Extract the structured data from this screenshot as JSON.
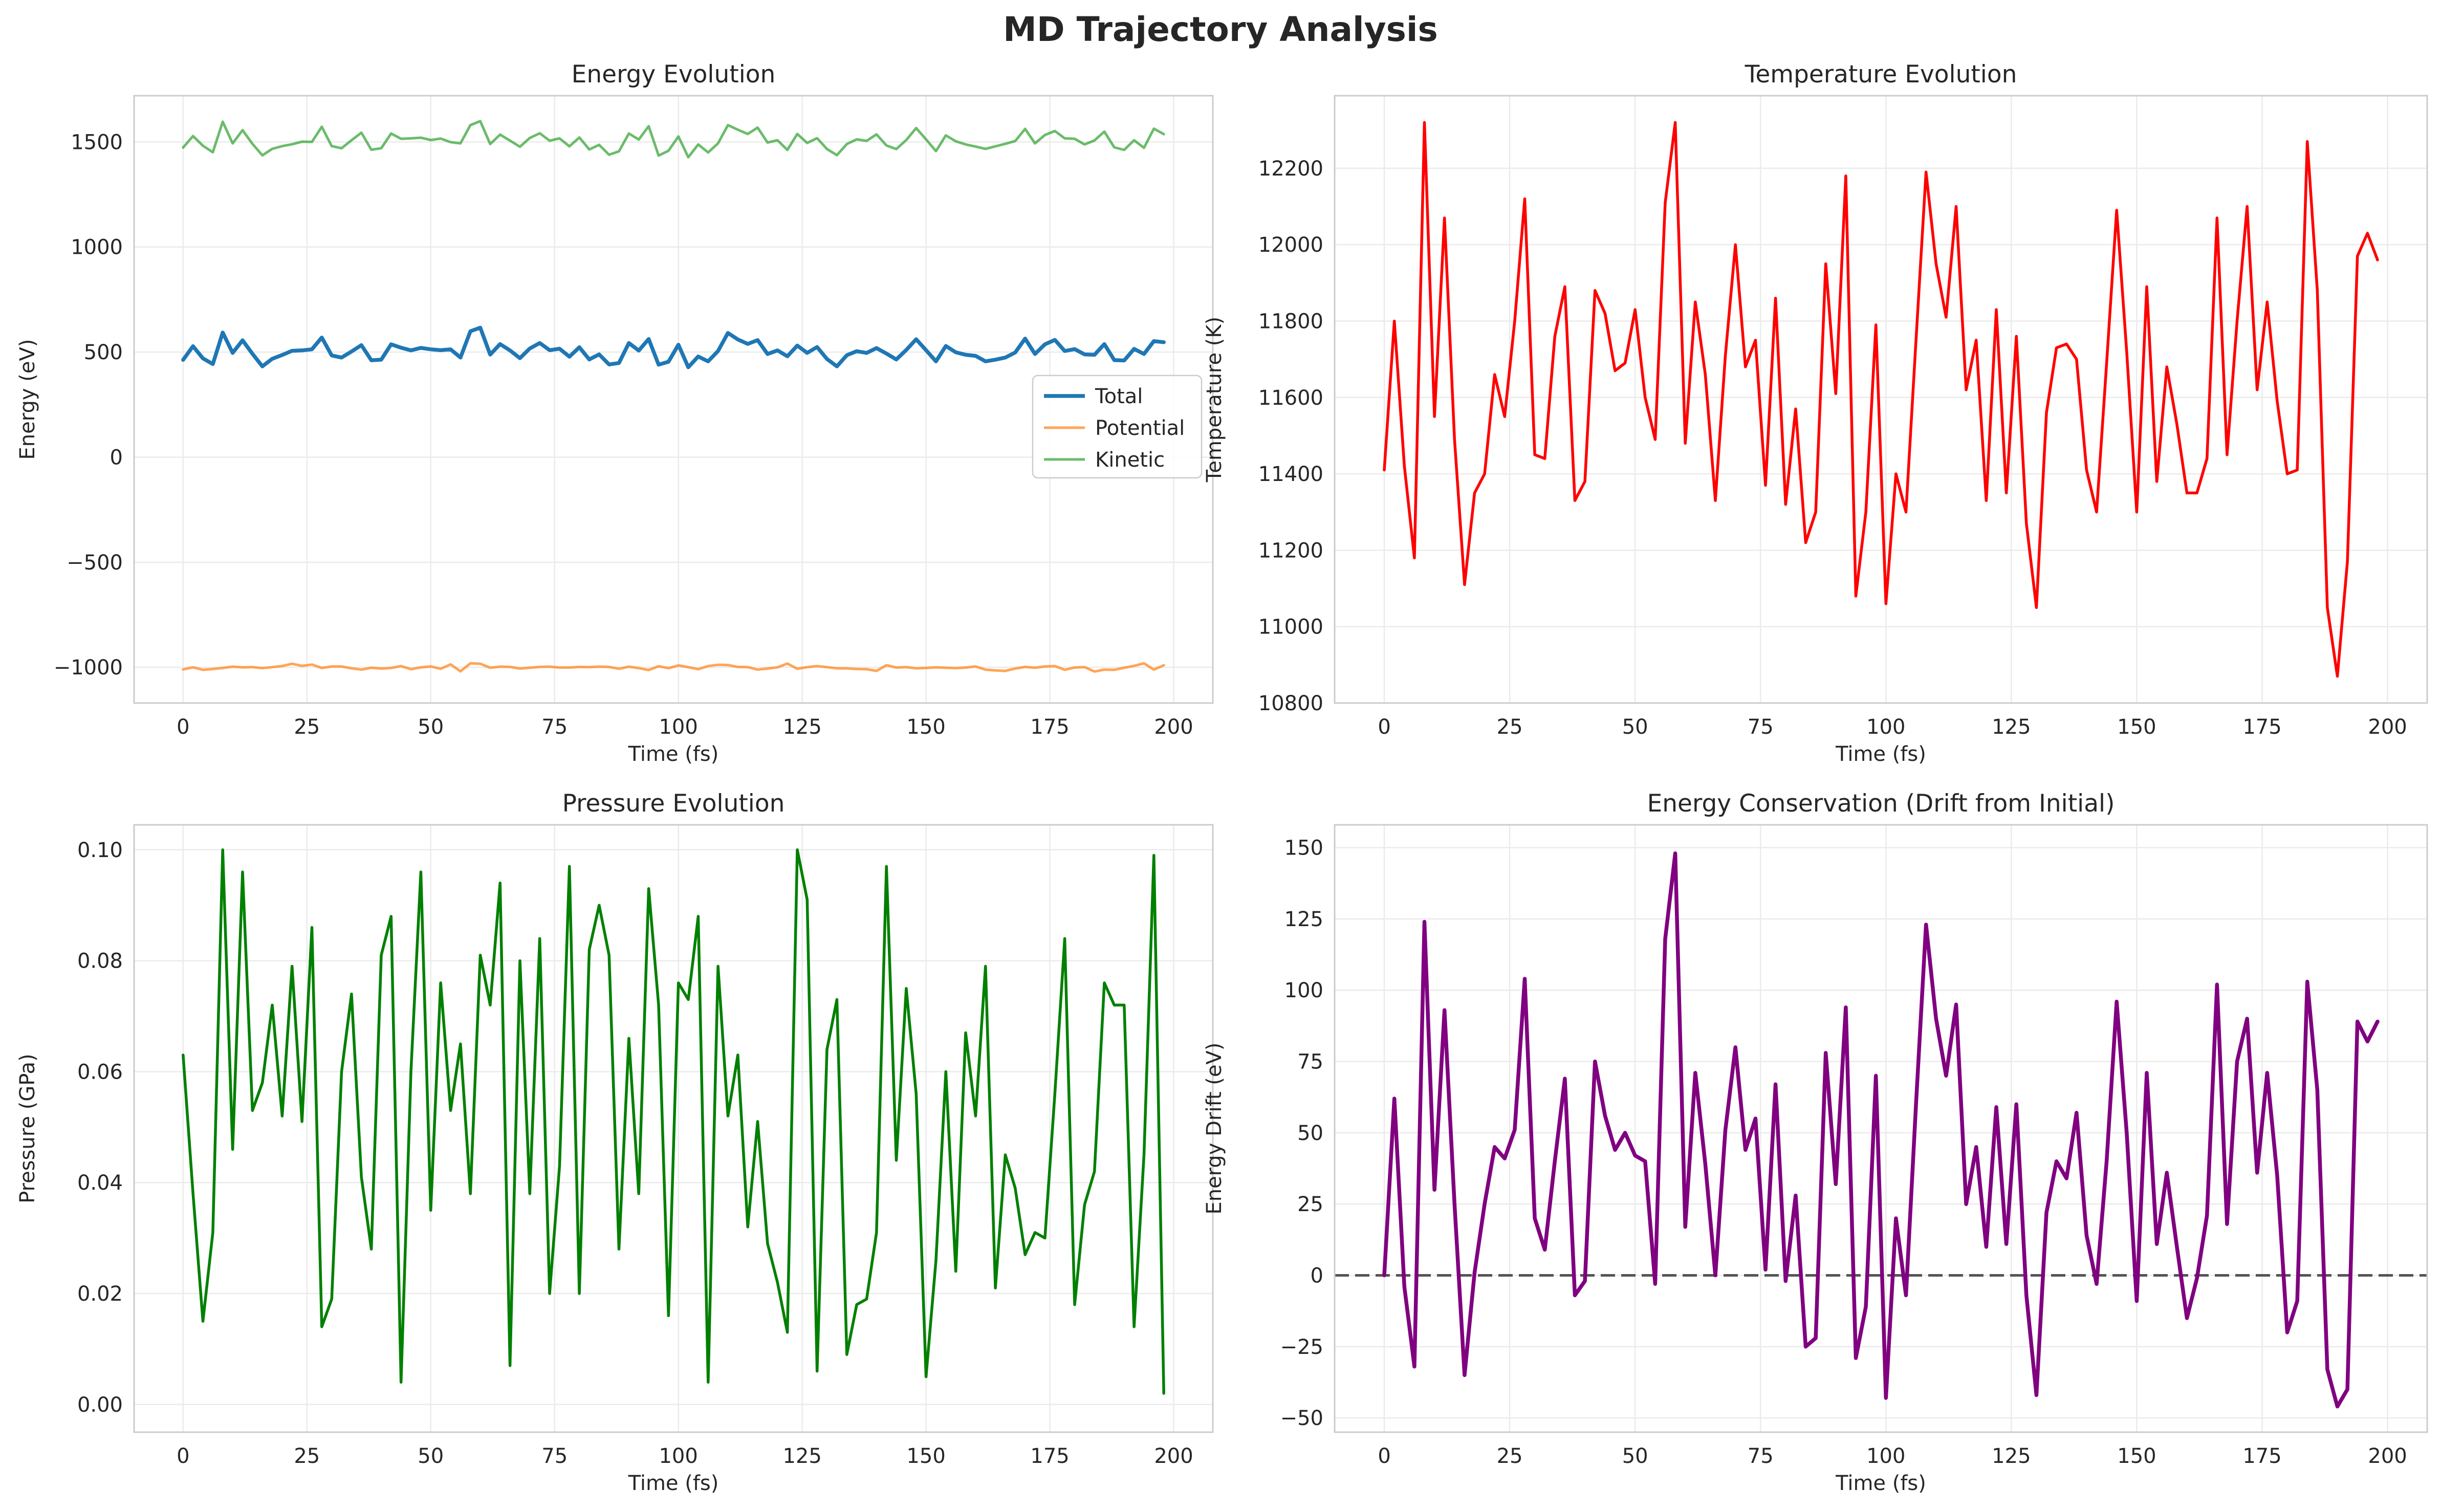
{
  "figure": {
    "suptitle": "MD Trajectory Analysis"
  },
  "chart_data": [
    {
      "id": "energy",
      "type": "line",
      "title": "Energy Evolution",
      "xlabel": "Time (fs)",
      "ylabel": "Energy (eV)",
      "xlim": [
        -9.9,
        207.9
      ],
      "ylim": [
        -1170,
        1720
      ],
      "xticks": [
        0,
        25,
        50,
        75,
        100,
        125,
        150,
        175,
        200
      ],
      "yticks": [
        -1000,
        -500,
        0,
        500,
        1000,
        1500
      ],
      "ytick_labels": [
        "−1000",
        "−500",
        "0",
        "500",
        "1000",
        "1500"
      ],
      "grid": true,
      "legend": "center-right",
      "x": [
        0,
        2,
        4,
        6,
        8,
        10,
        12,
        14,
        16,
        18,
        20,
        22,
        24,
        26,
        28,
        30,
        32,
        34,
        36,
        38,
        40,
        42,
        44,
        46,
        48,
        50,
        52,
        54,
        56,
        58,
        60,
        62,
        64,
        66,
        68,
        70,
        72,
        74,
        76,
        78,
        80,
        82,
        84,
        86,
        88,
        90,
        92,
        94,
        96,
        98,
        100,
        102,
        104,
        106,
        108,
        110,
        112,
        114,
        116,
        118,
        120,
        122,
        124,
        126,
        128,
        130,
        132,
        134,
        136,
        138,
        140,
        142,
        144,
        146,
        148,
        150,
        152,
        154,
        156,
        158,
        160,
        162,
        164,
        166,
        168,
        170,
        172,
        174,
        176,
        178,
        180,
        182,
        184,
        186,
        188,
        190,
        192,
        194,
        196,
        198
      ],
      "series": [
        {
          "name": "Total",
          "color": "#1f77b4",
          "width": 7.5,
          "values": [
            463,
            528,
            470,
            443,
            593,
            496,
            556,
            492,
            432,
            468,
            486,
            506,
            508,
            513,
            569,
            484,
            474,
            503,
            533,
            461,
            464,
            537,
            521,
            508,
            520,
            513,
            509,
            513,
            474,
            599,
            616,
            488,
            538,
            508,
            471,
            517,
            543,
            509,
            516,
            478,
            523,
            465,
            489,
            441,
            448,
            543,
            507,
            562,
            440,
            454,
            535,
            428,
            479,
            456,
            505,
            591,
            560,
            539,
            557,
            491,
            508,
            480,
            531,
            496,
            524,
            467,
            432,
            485,
            504,
            496,
            519,
            493,
            465,
            510,
            561,
            509,
            456,
            529,
            499,
            487,
            482,
            456,
            464,
            474,
            498,
            564,
            491,
            537,
            558,
            505,
            514,
            489,
            487,
            538,
            462,
            460,
            515,
            491,
            552,
            547
          ]
        },
        {
          "name": "Potential",
          "color": "#ff7f0e",
          "width": 5.0,
          "alpha": 0.7,
          "values": [
            -1010,
            -1000,
            -1012,
            -1008,
            -1003,
            -997,
            -1000,
            -999,
            -1004,
            -999,
            -994,
            -983,
            -993,
            -987,
            -1003,
            -996,
            -996,
            -1005,
            -1011,
            -1002,
            -1006,
            -1003,
            -994,
            -1009,
            -1000,
            -996,
            -1007,
            -986,
            -1019,
            -981,
            -983,
            -1002,
            -997,
            -998,
            -1006,
            -1002,
            -998,
            -997,
            -1001,
            -1001,
            -998,
            -999,
            -997,
            -998,
            -1007,
            -997,
            -1004,
            -1013,
            -995,
            -1004,
            -991,
            -999,
            -1009,
            -994,
            -988,
            -989,
            -998,
            -999,
            -1011,
            -1006,
            -1000,
            -982,
            -1007,
            -999,
            -994,
            -999,
            -1005,
            -1005,
            -1008,
            -1009,
            -1017,
            -990,
            -1001,
            -999,
            -1005,
            -1003,
            -1000,
            -1002,
            -1004,
            -1001,
            -996,
            -1011,
            -1015,
            -1017,
            -1006,
            -998,
            -1002,
            -996,
            -994,
            -1012,
            -1001,
            -999,
            -1020,
            -1011,
            -1012,
            -1002,
            -993,
            -981,
            -1011,
            -990
          ]
        },
        {
          "name": "Kinetic",
          "color": "#2ca02c",
          "width": 5.0,
          "alpha": 0.7,
          "values": [
            1473,
            1528,
            1482,
            1451,
            1596,
            1493,
            1556,
            1491,
            1436,
            1467,
            1480,
            1489,
            1501,
            1500,
            1572,
            1480,
            1470,
            1508,
            1544,
            1463,
            1470,
            1540,
            1515,
            1517,
            1520,
            1509,
            1516,
            1499,
            1493,
            1580,
            1599,
            1490,
            1535,
            1506,
            1477,
            1519,
            1541,
            1506,
            1517,
            1479,
            1521,
            1464,
            1486,
            1439,
            1455,
            1540,
            1511,
            1575,
            1435,
            1458,
            1526,
            1427,
            1488,
            1450,
            1493,
            1580,
            1558,
            1538,
            1568,
            1497,
            1508,
            1462,
            1538,
            1495,
            1518,
            1466,
            1437,
            1490,
            1512,
            1505,
            1536,
            1483,
            1466,
            1509,
            1566,
            1512,
            1456,
            1531,
            1503,
            1488,
            1478,
            1467,
            1479,
            1491,
            1504,
            1562,
            1493,
            1533,
            1552,
            1517,
            1515,
            1488,
            1507,
            1549,
            1474,
            1462,
            1508,
            1472,
            1563,
            1537
          ]
        }
      ]
    },
    {
      "id": "temperature",
      "type": "line",
      "title": "Temperature Evolution",
      "xlabel": "Time (fs)",
      "ylabel": "Temperature (K)",
      "xlim": [
        -9.9,
        207.9
      ],
      "ylim": [
        10800,
        12390
      ],
      "xticks": [
        0,
        25,
        50,
        75,
        100,
        125,
        150,
        175,
        200
      ],
      "yticks": [
        10800,
        11000,
        11200,
        11400,
        11600,
        11800,
        12000,
        12200
      ],
      "ytick_labels": [
        "10800",
        "11000",
        "11200",
        "11400",
        "11600",
        "11800",
        "12000",
        "12200"
      ],
      "grid": true,
      "x": [
        0,
        2,
        4,
        6,
        8,
        10,
        12,
        14,
        16,
        18,
        20,
        22,
        24,
        26,
        28,
        30,
        32,
        34,
        36,
        38,
        40,
        42,
        44,
        46,
        48,
        50,
        52,
        54,
        56,
        58,
        60,
        62,
        64,
        66,
        68,
        70,
        72,
        74,
        76,
        78,
        80,
        82,
        84,
        86,
        88,
        90,
        92,
        94,
        96,
        98,
        100,
        102,
        104,
        106,
        108,
        110,
        112,
        114,
        116,
        118,
        120,
        122,
        124,
        126,
        128,
        130,
        132,
        134,
        136,
        138,
        140,
        142,
        144,
        146,
        148,
        150,
        152,
        154,
        156,
        158,
        160,
        162,
        164,
        166,
        168,
        170,
        172,
        174,
        176,
        178,
        180,
        182,
        184,
        186,
        188,
        190,
        192,
        194,
        196,
        198
      ],
      "series": [
        {
          "name": "Temperature",
          "color": "#ff0000",
          "width": 5.5,
          "values": [
            11410,
            11800,
            11420,
            11180,
            12320,
            11550,
            12070,
            11490,
            11110,
            11350,
            11400,
            11660,
            11550,
            11800,
            12120,
            11450,
            11440,
            11760,
            11890,
            11330,
            11380,
            11880,
            11820,
            11670,
            11690,
            11830,
            11600,
            11490,
            12110,
            12320,
            11480,
            11850,
            11660,
            11330,
            11710,
            12000,
            11680,
            11750,
            11370,
            11860,
            11320,
            11570,
            11220,
            11300,
            11950,
            11610,
            12180,
            11080,
            11300,
            11790,
            11060,
            11400,
            11300,
            11750,
            12190,
            11950,
            11810,
            12100,
            11620,
            11750,
            11330,
            11830,
            11350,
            11760,
            11270,
            11050,
            11560,
            11730,
            11740,
            11700,
            11410,
            11300,
            11690,
            12090,
            11720,
            11300,
            11890,
            11380,
            11680,
            11530,
            11350,
            11350,
            11440,
            12070,
            11450,
            11800,
            12100,
            11620,
            11850,
            11590,
            11400,
            11410,
            12270,
            11880,
            11050,
            10870,
            11170,
            11970,
            12030,
            11960
          ]
        }
      ]
    },
    {
      "id": "pressure",
      "type": "line",
      "title": "Pressure Evolution",
      "xlabel": "Time (fs)",
      "ylabel": "Pressure (GPa)",
      "xlim": [
        -9.9,
        207.9
      ],
      "ylim": [
        -0.005,
        0.1045
      ],
      "xticks": [
        0,
        25,
        50,
        75,
        100,
        125,
        150,
        175,
        200
      ],
      "yticks": [
        0.0,
        0.02,
        0.04,
        0.06,
        0.08,
        0.1
      ],
      "ytick_labels": [
        "0.00",
        "0.02",
        "0.04",
        "0.06",
        "0.08",
        "0.10"
      ],
      "grid": true,
      "x": [
        0,
        2,
        4,
        6,
        8,
        10,
        12,
        14,
        16,
        18,
        20,
        22,
        24,
        26,
        28,
        30,
        32,
        34,
        36,
        38,
        40,
        42,
        44,
        46,
        48,
        50,
        52,
        54,
        56,
        58,
        60,
        62,
        64,
        66,
        68,
        70,
        72,
        74,
        76,
        78,
        80,
        82,
        84,
        86,
        88,
        90,
        92,
        94,
        96,
        98,
        100,
        102,
        104,
        106,
        108,
        110,
        112,
        114,
        116,
        118,
        120,
        122,
        124,
        126,
        128,
        130,
        132,
        134,
        136,
        138,
        140,
        142,
        144,
        146,
        148,
        150,
        152,
        154,
        156,
        158,
        160,
        162,
        164,
        166,
        168,
        170,
        172,
        174,
        176,
        178,
        180,
        182,
        184,
        186,
        188,
        190,
        192,
        194,
        196,
        198
      ],
      "series": [
        {
          "name": "Pressure",
          "color": "#008000",
          "width": 5.5,
          "values": [
            0.063,
            0.038,
            0.015,
            0.031,
            0.1,
            0.046,
            0.096,
            0.053,
            0.058,
            0.072,
            0.052,
            0.079,
            0.051,
            0.086,
            0.014,
            0.019,
            0.06,
            0.074,
            0.041,
            0.028,
            0.081,
            0.088,
            0.004,
            0.06,
            0.096,
            0.035,
            0.076,
            0.053,
            0.065,
            0.038,
            0.081,
            0.072,
            0.094,
            0.007,
            0.08,
            0.038,
            0.084,
            0.02,
            0.043,
            0.097,
            0.02,
            0.082,
            0.09,
            0.081,
            0.028,
            0.066,
            0.038,
            0.093,
            0.072,
            0.016,
            0.076,
            0.073,
            0.088,
            0.004,
            0.079,
            0.052,
            0.063,
            0.032,
            0.051,
            0.029,
            0.022,
            0.013,
            0.1,
            0.091,
            0.006,
            0.064,
            0.073,
            0.009,
            0.018,
            0.019,
            0.031,
            0.097,
            0.044,
            0.075,
            0.056,
            0.005,
            0.026,
            0.06,
            0.024,
            0.067,
            0.052,
            0.079,
            0.021,
            0.045,
            0.039,
            0.027,
            0.031,
            0.03,
            0.056,
            0.084,
            0.018,
            0.036,
            0.042,
            0.076,
            0.072,
            0.072,
            0.014,
            0.045,
            0.099,
            0.002
          ]
        }
      ]
    },
    {
      "id": "drift",
      "type": "line",
      "title": "Energy Conservation (Drift from Initial)",
      "xlabel": "Time (fs)",
      "ylabel": "Energy Drift (eV)",
      "xlim": [
        -9.9,
        207.9
      ],
      "ylim": [
        -55,
        158
      ],
      "xticks": [
        0,
        25,
        50,
        75,
        100,
        125,
        150,
        175,
        200
      ],
      "yticks": [
        -50,
        -25,
        0,
        25,
        50,
        75,
        100,
        125,
        150
      ],
      "ytick_labels": [
        "−50",
        "−25",
        "0",
        "25",
        "50",
        "75",
        "100",
        "125",
        "150"
      ],
      "grid": true,
      "hline": {
        "y": 0,
        "color": "#555555",
        "style": "dashed"
      },
      "x": [
        0,
        2,
        4,
        6,
        8,
        10,
        12,
        14,
        16,
        18,
        20,
        22,
        24,
        26,
        28,
        30,
        32,
        34,
        36,
        38,
        40,
        42,
        44,
        46,
        48,
        50,
        52,
        54,
        56,
        58,
        60,
        62,
        64,
        66,
        68,
        70,
        72,
        74,
        76,
        78,
        80,
        82,
        84,
        86,
        88,
        90,
        92,
        94,
        96,
        98,
        100,
        102,
        104,
        106,
        108,
        110,
        112,
        114,
        116,
        118,
        120,
        122,
        124,
        126,
        128,
        130,
        132,
        134,
        136,
        138,
        140,
        142,
        144,
        146,
        148,
        150,
        152,
        154,
        156,
        158,
        160,
        162,
        164,
        166,
        168,
        170,
        172,
        174,
        176,
        178,
        180,
        182,
        184,
        186,
        188,
        190,
        192,
        194,
        196,
        198
      ],
      "series": [
        {
          "name": "Energy Drift",
          "color": "#800080",
          "width": 7.5,
          "values": [
            0,
            62,
            -4,
            -32,
            124,
            30,
            93,
            25,
            -35,
            1,
            25,
            45,
            41,
            51,
            104,
            20,
            9,
            40,
            69,
            -7,
            -2,
            75,
            56,
            44,
            50,
            42,
            40,
            -3,
            118,
            148,
            17,
            71,
            39,
            0,
            51,
            80,
            44,
            55,
            2,
            67,
            -2,
            28,
            -25,
            -22,
            78,
            32,
            94,
            -29,
            -11,
            70,
            -43,
            20,
            -7,
            60,
            123,
            90,
            70,
            95,
            25,
            45,
            10,
            59,
            11,
            60,
            -7,
            -42,
            22,
            40,
            34,
            57,
            14,
            -3,
            40,
            96,
            50,
            -9,
            71,
            11,
            36,
            10,
            -15,
            -1,
            21,
            102,
            18,
            75,
            90,
            36,
            71,
            35,
            -20,
            -9,
            103,
            65,
            -33,
            -46,
            -40,
            89,
            82,
            89
          ]
        }
      ]
    }
  ]
}
